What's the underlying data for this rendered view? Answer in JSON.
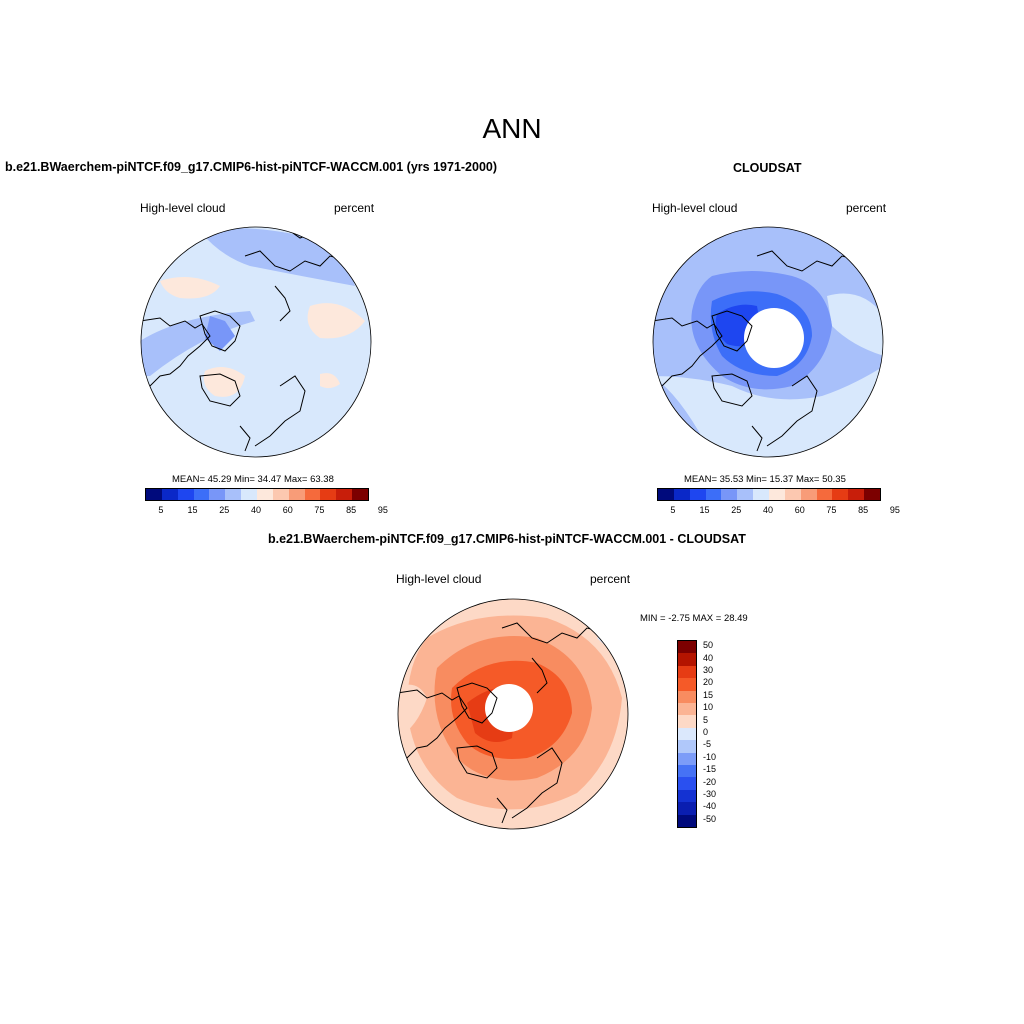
{
  "title": "ANN",
  "panels": {
    "model": {
      "title": "b.e21.BWaerchem-piNTCF.f09_g17.CMIP6-hist-piNTCF-WACCM.001 (yrs 1971-2000)",
      "left_label": "High-level cloud",
      "right_label": "percent",
      "stats": "MEAN=  45.29  Min=  34.47  Max=  63.38"
    },
    "obs": {
      "title": "CLOUDSAT",
      "left_label": "High-level cloud",
      "right_label": "percent",
      "stats": "MEAN=  35.53  Min=  15.37  Max=  50.35"
    },
    "diff": {
      "title": "b.e21.BWaerchem-piNTCF.f09_g17.CMIP6-hist-piNTCF-WACCM.001 - CLOUDSAT",
      "left_label": "High-level cloud",
      "right_label": "percent",
      "minmax": "MIN =  -2.75 MAX =  28.49"
    }
  },
  "colorbar_abs": {
    "colors": [
      "#000a7c",
      "#0a28c8",
      "#1e46f0",
      "#3c6ef8",
      "#7896f8",
      "#a8c0fa",
      "#d8e8fc",
      "#fde8dc",
      "#fcc8b0",
      "#f89c78",
      "#f56a3c",
      "#e63c14",
      "#c81e0a",
      "#7c0000"
    ],
    "ticks": [
      "5",
      "15",
      "25",
      "40",
      "60",
      "75",
      "85",
      "95"
    ]
  },
  "colorbar_diff": {
    "colors": [
      "#7c0000",
      "#b41400",
      "#e63c14",
      "#f55a28",
      "#f88c60",
      "#fbb494",
      "#fdd9c6",
      "#dbe8fc",
      "#b0c8fa",
      "#7c9cf8",
      "#4672f5",
      "#2a50f0",
      "#1432d2",
      "#0a1eb0",
      "#000a7c"
    ],
    "ticks": [
      "50",
      "40",
      "30",
      "20",
      "15",
      "10",
      "5",
      "0",
      "-5",
      "-10",
      "-15",
      "-20",
      "-30",
      "-40",
      "-50"
    ]
  }
}
